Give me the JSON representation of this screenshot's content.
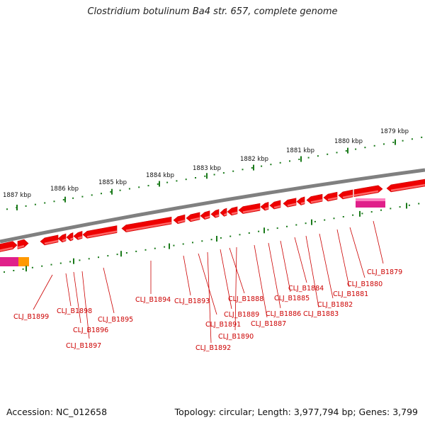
{
  "title": "Clostridium botulinum Ba4 str. 657, complete genome",
  "footer": {
    "accession": "Accession: NC_012658",
    "stats": "Topology: circular; Length: 3,977,794 bp; Genes: 3,799"
  },
  "scale_ticks": [
    "1887 kbp",
    "1886 kbp",
    "1885 kbp",
    "1884 kbp",
    "1883 kbp",
    "1882 kbp",
    "1881 kbp",
    "1880 kbp",
    "1879 kbp"
  ],
  "gene_labels": [
    "CLJ_B1899",
    "CLJ_B1898",
    "CLJ_B1896",
    "CLJ_B1897",
    "CLJ_B1895",
    "CLJ_B1894",
    "CLJ_B1893",
    "CLJ_B1891",
    "CLJ_B1892",
    "CLJ_B1888",
    "CLJ_B1889",
    "CLJ_B1890",
    "CLJ_B1886",
    "CLJ_B1887",
    "CLJ_B1885",
    "CLJ_B1884",
    "CLJ_B1883",
    "CLJ_B1882",
    "CLJ_B1881",
    "CLJ_B1880",
    "CLJ_B1879"
  ],
  "colors": {
    "gene_fill": "#ee0000",
    "gene_highlight": "#ff6666",
    "backbone": "#808080",
    "tick": "#1a7a1a",
    "label": "#cc0000",
    "pink_feature": "#e0208a",
    "orange_feature": "#ff9900"
  }
}
